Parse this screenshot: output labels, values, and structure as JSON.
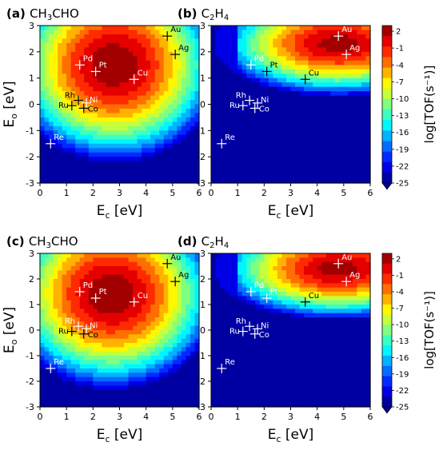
{
  "panels": [
    {
      "tag": "(a)",
      "species": "CH3CHO",
      "xlabel": "E_c [eV]",
      "ylabel": "E_o [eV]",
      "xlim": [
        0,
        6
      ],
      "ylim": [
        -3,
        3
      ],
      "xticks": [
        "0",
        "1",
        "2",
        "3",
        "4",
        "5",
        "6"
      ],
      "yticks": [
        "3",
        "2",
        "1",
        "0",
        "-1",
        "-2",
        "-3"
      ],
      "surface": {
        "peak_Ec": 2.8,
        "peak_Eo": 1.5,
        "style": "broad"
      },
      "metals": [
        {
          "name": "Au",
          "x": 4.8,
          "y": 2.6
        },
        {
          "name": "Ag",
          "x": 5.1,
          "y": 1.9
        },
        {
          "name": "Pd",
          "x": 1.5,
          "y": 1.5
        },
        {
          "name": "Pt",
          "x": 2.1,
          "y": 1.25
        },
        {
          "name": "Cu",
          "x": 3.55,
          "y": 0.95
        },
        {
          "name": "Rh",
          "x": 1.45,
          "y": 0.15
        },
        {
          "name": "Ni",
          "x": 1.75,
          "y": 0.05
        },
        {
          "name": "Ru",
          "x": 1.2,
          "y": -0.05
        },
        {
          "name": "Co",
          "x": 1.65,
          "y": -0.15
        },
        {
          "name": "Re",
          "x": 0.4,
          "y": -1.5
        }
      ]
    },
    {
      "tag": "(b)",
      "species": "C2H4",
      "xlabel": "E_c [eV]",
      "ylabel": "",
      "xlim": [
        0,
        6
      ],
      "ylim": [
        -3,
        3
      ],
      "xticks": [
        "0",
        "1",
        "2",
        "3",
        "4",
        "5",
        "6"
      ],
      "yticks": [
        "3",
        "2",
        "1",
        "0",
        "-1",
        "-2",
        "-3"
      ],
      "surface": {
        "peak_Ec": 4.8,
        "peak_Eo": 2.3,
        "style": "ridge"
      },
      "metals": [
        {
          "name": "Au",
          "x": 4.8,
          "y": 2.6
        },
        {
          "name": "Ag",
          "x": 5.1,
          "y": 1.9
        },
        {
          "name": "Pd",
          "x": 1.5,
          "y": 1.5
        },
        {
          "name": "Pt",
          "x": 2.1,
          "y": 1.25
        },
        {
          "name": "Cu",
          "x": 3.55,
          "y": 0.95
        },
        {
          "name": "Rh",
          "x": 1.45,
          "y": 0.15
        },
        {
          "name": "Ni",
          "x": 1.75,
          "y": 0.05
        },
        {
          "name": "Ru",
          "x": 1.2,
          "y": -0.05
        },
        {
          "name": "Co",
          "x": 1.65,
          "y": -0.15
        },
        {
          "name": "Re",
          "x": 0.4,
          "y": -1.5
        }
      ]
    },
    {
      "tag": "(c)",
      "species": "CH3CHO",
      "xlabel": "E_c [eV]",
      "ylabel": "E_o [eV]",
      "xlim": [
        0,
        6
      ],
      "ylim": [
        -3,
        3
      ],
      "xticks": [
        "0",
        "1",
        "2",
        "3",
        "4",
        "5",
        "6"
      ],
      "yticks": [
        "3",
        "2",
        "1",
        "0",
        "-1",
        "-2",
        "-3"
      ],
      "surface": {
        "peak_Ec": 2.7,
        "peak_Eo": 1.4,
        "style": "broad"
      },
      "metals": [
        {
          "name": "Au",
          "x": 4.8,
          "y": 2.6
        },
        {
          "name": "Ag",
          "x": 5.1,
          "y": 1.9
        },
        {
          "name": "Pd",
          "x": 1.5,
          "y": 1.5
        },
        {
          "name": "Pt",
          "x": 2.1,
          "y": 1.25
        },
        {
          "name": "Cu",
          "x": 3.55,
          "y": 1.1
        },
        {
          "name": "Rh",
          "x": 1.45,
          "y": 0.15
        },
        {
          "name": "Ni",
          "x": 1.75,
          "y": 0.05
        },
        {
          "name": "Ru",
          "x": 1.2,
          "y": -0.05
        },
        {
          "name": "Co",
          "x": 1.65,
          "y": -0.15
        },
        {
          "name": "Re",
          "x": 0.4,
          "y": -1.5
        }
      ]
    },
    {
      "tag": "(d)",
      "species": "C2H4",
      "xlabel": "E_c [eV]",
      "ylabel": "",
      "xlim": [
        0,
        6
      ],
      "ylim": [
        -3,
        3
      ],
      "xticks": [
        "0",
        "1",
        "2",
        "3",
        "4",
        "5",
        "6"
      ],
      "yticks": [
        "3",
        "2",
        "1",
        "0",
        "-1",
        "-2",
        "-3"
      ],
      "surface": {
        "peak_Ec": 4.8,
        "peak_Eo": 2.4,
        "style": "ridge"
      },
      "metals": [
        {
          "name": "Au",
          "x": 4.8,
          "y": 2.6
        },
        {
          "name": "Ag",
          "x": 5.1,
          "y": 1.9
        },
        {
          "name": "Pd",
          "x": 1.5,
          "y": 1.5
        },
        {
          "name": "Pt",
          "x": 2.1,
          "y": 1.25
        },
        {
          "name": "Cu",
          "x": 3.55,
          "y": 1.1
        },
        {
          "name": "Rh",
          "x": 1.45,
          "y": 0.15
        },
        {
          "name": "Ni",
          "x": 1.75,
          "y": 0.05
        },
        {
          "name": "Ru",
          "x": 1.2,
          "y": -0.05
        },
        {
          "name": "Co",
          "x": 1.65,
          "y": -0.15
        },
        {
          "name": "Re",
          "x": 0.4,
          "y": -1.5
        }
      ]
    }
  ],
  "colorbar": {
    "label": "log[TOF(s⁻¹)]",
    "ticks": [
      "2",
      "-1",
      "-4",
      "-7",
      "-10",
      "-13",
      "-16",
      "-19",
      "-22",
      "-25"
    ],
    "vmin": -25,
    "vmax": 3
  },
  "chart_data": [
    {
      "type": "heatmap",
      "title": "(a) CH3CHO",
      "xlabel": "Ec [eV]",
      "ylabel": "Eo [eV]",
      "xlim": [
        0,
        6
      ],
      "ylim": [
        -3,
        3
      ],
      "zlabel": "log[TOF(s-1)]",
      "zlim": [
        -25,
        3
      ],
      "points": [
        {
          "label": "Au",
          "x": 4.8,
          "y": 2.6
        },
        {
          "label": "Ag",
          "x": 5.1,
          "y": 1.9
        },
        {
          "label": "Pd",
          "x": 1.5,
          "y": 1.5
        },
        {
          "label": "Pt",
          "x": 2.1,
          "y": 1.25
        },
        {
          "label": "Cu",
          "x": 3.55,
          "y": 0.95
        },
        {
          "label": "Rh",
          "x": 1.45,
          "y": 0.15
        },
        {
          "label": "Ni",
          "x": 1.75,
          "y": 0.05
        },
        {
          "label": "Ru",
          "x": 1.2,
          "y": -0.05
        },
        {
          "label": "Co",
          "x": 1.65,
          "y": -0.15
        },
        {
          "label": "Re",
          "x": 0.4,
          "y": -1.5
        }
      ]
    },
    {
      "type": "heatmap",
      "title": "(b) C2H4",
      "xlabel": "Ec [eV]",
      "ylabel": "",
      "xlim": [
        0,
        6
      ],
      "ylim": [
        -3,
        3
      ],
      "zlabel": "log[TOF(s-1)]",
      "zlim": [
        -25,
        3
      ],
      "points": [
        {
          "label": "Au",
          "x": 4.8,
          "y": 2.6
        },
        {
          "label": "Ag",
          "x": 5.1,
          "y": 1.9
        },
        {
          "label": "Pd",
          "x": 1.5,
          "y": 1.5
        },
        {
          "label": "Pt",
          "x": 2.1,
          "y": 1.25
        },
        {
          "label": "Cu",
          "x": 3.55,
          "y": 0.95
        },
        {
          "label": "Rh",
          "x": 1.45,
          "y": 0.15
        },
        {
          "label": "Ni",
          "x": 1.75,
          "y": 0.05
        },
        {
          "label": "Ru",
          "x": 1.2,
          "y": -0.05
        },
        {
          "label": "Co",
          "x": 1.65,
          "y": -0.15
        },
        {
          "label": "Re",
          "x": 0.4,
          "y": -1.5
        }
      ]
    },
    {
      "type": "heatmap",
      "title": "(c) CH3CHO",
      "xlabel": "Ec [eV]",
      "ylabel": "Eo [eV]",
      "xlim": [
        0,
        6
      ],
      "ylim": [
        -3,
        3
      ],
      "zlabel": "log[TOF(s-1)]",
      "zlim": [
        -25,
        3
      ],
      "points": [
        {
          "label": "Au",
          "x": 4.8,
          "y": 2.6
        },
        {
          "label": "Ag",
          "x": 5.1,
          "y": 1.9
        },
        {
          "label": "Pd",
          "x": 1.5,
          "y": 1.5
        },
        {
          "label": "Pt",
          "x": 2.1,
          "y": 1.25
        },
        {
          "label": "Cu",
          "x": 3.55,
          "y": 1.1
        },
        {
          "label": "Rh",
          "x": 1.45,
          "y": 0.15
        },
        {
          "label": "Ni",
          "x": 1.75,
          "y": 0.05
        },
        {
          "label": "Ru",
          "x": 1.2,
          "y": -0.05
        },
        {
          "label": "Co",
          "x": 1.65,
          "y": -0.15
        },
        {
          "label": "Re",
          "x": 0.4,
          "y": -1.5
        }
      ]
    },
    {
      "type": "heatmap",
      "title": "(d) C2H4",
      "xlabel": "Ec [eV]",
      "ylabel": "",
      "xlim": [
        0,
        6
      ],
      "ylim": [
        -3,
        3
      ],
      "zlabel": "log[TOF(s-1)]",
      "zlim": [
        -25,
        3
      ],
      "points": [
        {
          "label": "Au",
          "x": 4.8,
          "y": 2.6
        },
        {
          "label": "Ag",
          "x": 5.1,
          "y": 1.9
        },
        {
          "label": "Pd",
          "x": 1.5,
          "y": 1.5
        },
        {
          "label": "Pt",
          "x": 2.1,
          "y": 1.25
        },
        {
          "label": "Cu",
          "x": 3.55,
          "y": 1.1
        },
        {
          "label": "Rh",
          "x": 1.45,
          "y": 0.15
        },
        {
          "label": "Ni",
          "x": 1.75,
          "y": 0.05
        },
        {
          "label": "Ru",
          "x": 1.2,
          "y": -0.05
        },
        {
          "label": "Co",
          "x": 1.65,
          "y": -0.15
        },
        {
          "label": "Re",
          "x": 0.4,
          "y": -1.5
        }
      ]
    }
  ]
}
